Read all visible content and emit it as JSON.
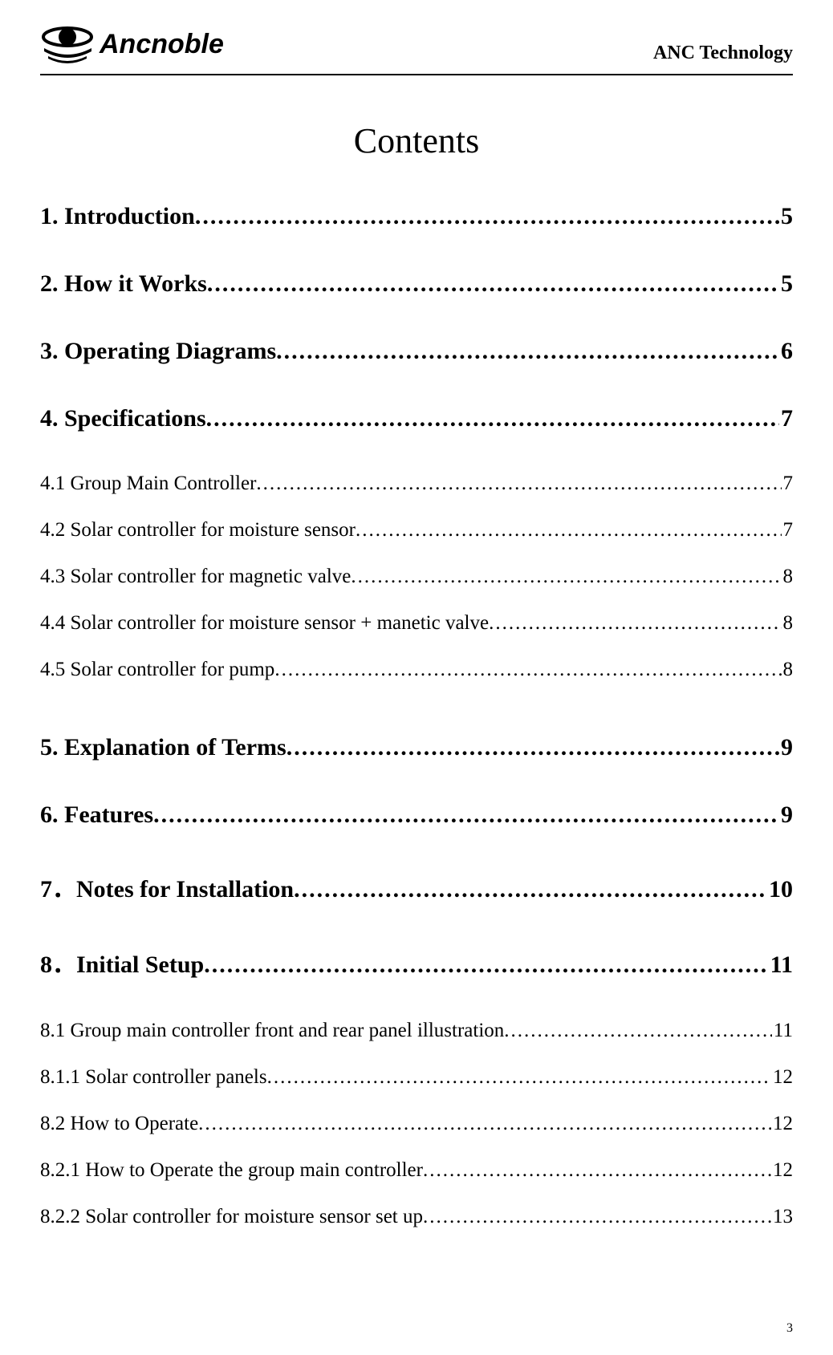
{
  "header": {
    "company_right": "ANC Technology",
    "logo_text": "Ancnoble"
  },
  "title": "Contents",
  "page_number": "3",
  "toc": [
    {
      "level": 1,
      "text": "1. Introduction ",
      "page": " 5"
    },
    {
      "level": 1,
      "text": "2. How it Works",
      "page": " 5"
    },
    {
      "level": 1,
      "text": "3. Operating Diagrams ",
      "page": " 6"
    },
    {
      "level": 1,
      "text": "4. Specifications",
      "page": " 7"
    },
    {
      "level": 2,
      "text": "4.1 Group Main Controller",
      "page": "7"
    },
    {
      "level": 2,
      "text": "4.2 Solar controller for moisture sensor",
      "page": "7"
    },
    {
      "level": 2,
      "text": "4.3 Solar controller for magnetic valve",
      "page": "8"
    },
    {
      "level": 2,
      "text": "4.4 Solar controller for moisture sensor + manetic valve ",
      "page": "8"
    },
    {
      "level": 2,
      "text": "4.5 Solar controller for pump ",
      "page": "8"
    },
    {
      "level": 0,
      "gap": true
    },
    {
      "level": 1,
      "text": "5. Explanation of Terms ",
      "page": " 9"
    },
    {
      "level": 1,
      "text": "6. Features ",
      "page": " 9"
    },
    {
      "level": 1,
      "text": "7．Notes for Installation ",
      "page": " 10"
    },
    {
      "level": 1,
      "text": "8．Initial Setup ",
      "page": "11"
    },
    {
      "level": 2,
      "text": "8.1 Group main controller front and rear panel illustration ",
      "page": " 11"
    },
    {
      "level": 2,
      "text": "8.1.1 Solar controller panels",
      "page": " 12"
    },
    {
      "level": 2,
      "text": "8.2 How to Operate ",
      "page": "12"
    },
    {
      "level": 2,
      "text": "8.2.1 How to Operate the group main controller ",
      "page": " 12"
    },
    {
      "level": 2,
      "text": "8.2.2 Solar controller for moisture sensor set up ",
      "page": " 13"
    }
  ]
}
